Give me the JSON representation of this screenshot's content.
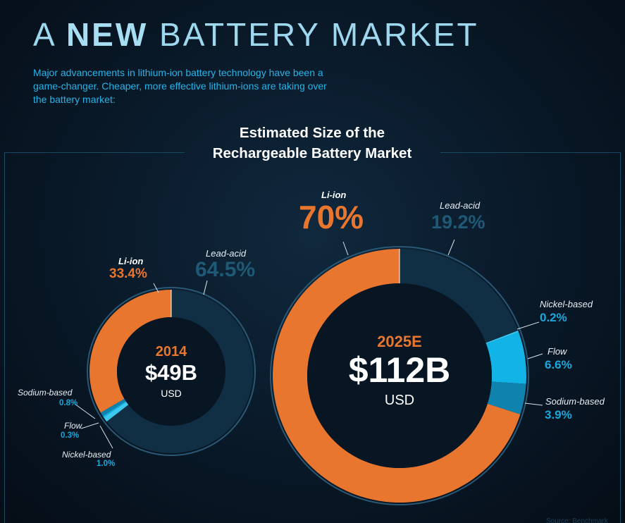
{
  "header": {
    "title_pre": "A",
    "title_strong": "NEW",
    "title_post": "BATTERY MARKET",
    "intro": "Major advancements in lithium-ion battery technology have been a game-changer. Cheaper, more effective lithium-ions are taking over the battery market:"
  },
  "chart_data": {
    "type": "donut",
    "title_line1": "Estimated Size of the",
    "title_line2": "Rechargeable Battery Market",
    "colors": {
      "Li-ion": "#e9762f",
      "Lead-acid": "#102f44",
      "Nickel-based": "#3cc8ef",
      "Flow": "#12b3e6",
      "Sodium-based": "#0f83ad"
    },
    "charts": [
      {
        "year": "2014",
        "total": "$49B",
        "unit": "USD",
        "segments": [
          {
            "name": "Li-ion",
            "value": 33.4,
            "label": "33.4%"
          },
          {
            "name": "Lead-acid",
            "value": 64.5,
            "label": "64.5%"
          },
          {
            "name": "Nickel-based",
            "value": 1.0,
            "label": "1.0%"
          },
          {
            "name": "Flow",
            "value": 0.3,
            "label": "0.3%"
          },
          {
            "name": "Sodium-based",
            "value": 0.8,
            "label": "0.8%"
          }
        ]
      },
      {
        "year": "2025E",
        "total": "$112B",
        "unit": "USD",
        "segments": [
          {
            "name": "Li-ion",
            "value": 70,
            "label": "70%"
          },
          {
            "name": "Lead-acid",
            "value": 19.2,
            "label": "19.2%"
          },
          {
            "name": "Nickel-based",
            "value": 0.2,
            "label": "0.2%"
          },
          {
            "name": "Flow",
            "value": 6.6,
            "label": "6.6%"
          },
          {
            "name": "Sodium-based",
            "value": 3.9,
            "label": "3.9%"
          }
        ]
      }
    ]
  },
  "footer": {
    "source": "Source: Benchmark"
  }
}
